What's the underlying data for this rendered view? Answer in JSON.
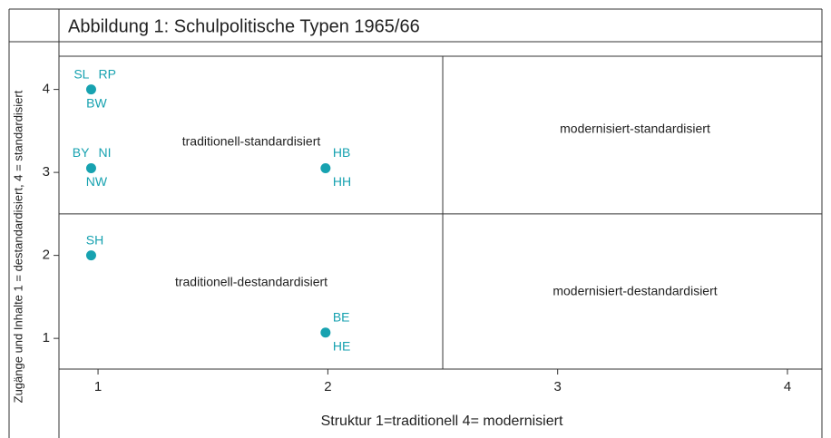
{
  "chart_data": {
    "type": "scatter",
    "title": "Abbildung 1: Schulpolitische Typen 1965/66",
    "xlabel": "Struktur 1=traditionell 4= modernisiert",
    "ylabel": "Zugänge und Inhalte 1 = destandardisiert, 4 = standardisiert",
    "color": "#17a2b0",
    "x": [
      0.97,
      0.97,
      1.99,
      0.97,
      1.99
    ],
    "y": [
      4,
      3.05,
      3.05,
      2,
      1.07
    ],
    "point_labels": [
      [
        "SL",
        "RP",
        "BW"
      ],
      [
        "BY",
        "NI",
        "NW"
      ],
      [
        "HB",
        "HH"
      ],
      [
        "SH"
      ],
      [
        "BE",
        "HE"
      ]
    ],
    "annotations": [
      "traditionell-standardisiert",
      "modernisiert-standardisiert",
      "traditionell-destandardisiert",
      "modernisiert-destandardisiert"
    ],
    "dividers": {
      "x": 2.5,
      "y": 2.5
    },
    "xlim": [
      0.83,
      4.15
    ],
    "ylim": [
      0.63,
      4.4
    ],
    "xticks": [
      1,
      2,
      3,
      4
    ],
    "yticks": [
      1,
      2,
      3,
      4
    ]
  }
}
